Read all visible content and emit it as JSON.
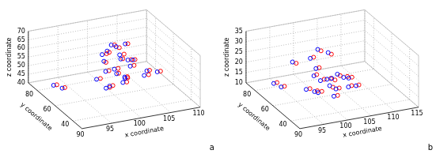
{
  "chart_data": [
    {
      "type": "scatter",
      "xlabel": "x coordinate",
      "ylabel": "y coordinate",
      "zlabel": "z coordinate",
      "annotations": [
        "a"
      ],
      "grid": true,
      "xlim": [
        90,
        110
      ],
      "xticks": [
        90,
        95,
        100,
        105,
        110
      ],
      "ylim": [
        30,
        90
      ],
      "yticks": [
        40,
        60,
        80
      ],
      "zlim": [
        40,
        70
      ],
      "zticks": [
        40,
        45,
        50,
        55,
        60,
        65,
        70
      ],
      "series": [
        {
          "color": "#0000ff",
          "marker": "o",
          "x": [
            100,
            101,
            99,
            102,
            103,
            98,
            100,
            104,
            101,
            99,
            102,
            100,
            97,
            103,
            101,
            100,
            98,
            102,
            104,
            99,
            92,
            93,
            105,
            101,
            100
          ],
          "y": [
            60,
            55,
            65,
            58,
            62,
            52,
            68,
            50,
            57,
            63,
            66,
            54,
            60,
            59,
            70,
            48,
            56,
            61,
            53,
            67,
            75,
            72,
            45,
            64,
            58
          ],
          "z": [
            55,
            52,
            58,
            60,
            54,
            50,
            62,
            56,
            48,
            53,
            57,
            66,
            51,
            59,
            64,
            55,
            47,
            68,
            52,
            61,
            44,
            43,
            57,
            50,
            69
          ]
        },
        {
          "color": "#ff0000",
          "marker": "o",
          "x": [
            100.5,
            101.3,
            99.2,
            102.4,
            103.5,
            98.4,
            100.2,
            104.3,
            101.5,
            99.4,
            102.2,
            100.6,
            97.5,
            103.2,
            101.4,
            100.3,
            98.5,
            102.3,
            104.6,
            99.6,
            92.4,
            93.3,
            105.4,
            101.2,
            100.4
          ],
          "y": [
            59,
            54,
            64,
            57,
            61,
            51,
            67,
            49,
            56,
            62,
            65,
            53,
            59,
            58,
            69,
            47,
            55,
            60,
            52,
            66,
            74,
            71,
            44,
            63,
            57
          ],
          "z": [
            55.6,
            52.5,
            57.7,
            60.4,
            54.6,
            50.5,
            61.6,
            56.6,
            48.4,
            53.6,
            57.5,
            66.5,
            51.6,
            59.5,
            64.3,
            55.6,
            47.6,
            68.4,
            52.5,
            61.6,
            44.5,
            43.6,
            57.6,
            50.6,
            68.6
          ]
        }
      ]
    },
    {
      "type": "scatter",
      "xlabel": "x coordinate",
      "ylabel": "y coordinate",
      "zlabel": "z coordinate",
      "annotations": [
        "b"
      ],
      "grid": true,
      "xlim": [
        90,
        115
      ],
      "xticks": [
        90,
        95,
        100,
        105,
        110,
        115
      ],
      "ylim": [
        30,
        90
      ],
      "yticks": [
        40,
        60,
        80
      ],
      "zlim": [
        10,
        35
      ],
      "zticks": [
        10,
        15,
        20,
        25,
        30,
        35
      ],
      "series": [
        {
          "color": "#0000ff",
          "marker": "o",
          "x": [
            100,
            101,
            99,
            102,
            98,
            103,
            100,
            104,
            97,
            101,
            105,
            99,
            100,
            102,
            96,
            93,
            94,
            106,
            101,
            100,
            103,
            98
          ],
          "y": [
            60,
            55,
            62,
            58,
            52,
            57,
            65,
            50,
            60,
            48,
            55,
            66,
            45,
            62,
            70,
            75,
            72,
            52,
            58,
            63,
            50,
            56
          ],
          "z": [
            18,
            17,
            20,
            19,
            16,
            21,
            22,
            17,
            15,
            18,
            19,
            27,
            16,
            30,
            25,
            14,
            13,
            16,
            19,
            32,
            22,
            15
          ]
        },
        {
          "color": "#ff0000",
          "marker": "o",
          "x": [
            100.6,
            101.5,
            99.4,
            102.5,
            98.6,
            103.4,
            100.5,
            104.5,
            97.6,
            101.5,
            105.5,
            99.5,
            100.6,
            102.5,
            96.6,
            93.5,
            94.5,
            106.4,
            101.6,
            100.5,
            103.6,
            98.4
          ],
          "y": [
            59,
            54,
            61,
            57,
            51,
            56,
            64,
            49,
            59,
            47,
            54,
            65,
            44,
            61,
            69,
            74,
            71,
            51,
            57,
            62,
            49,
            55
          ],
          "z": [
            18.8,
            16.4,
            20.8,
            18.4,
            16.7,
            20.5,
            22.6,
            17.8,
            15.5,
            18.6,
            19.6,
            27.7,
            16.5,
            29.4,
            24.5,
            14.6,
            13.5,
            16.6,
            19.5,
            31.5,
            22.6,
            15.6
          ]
        }
      ]
    }
  ]
}
